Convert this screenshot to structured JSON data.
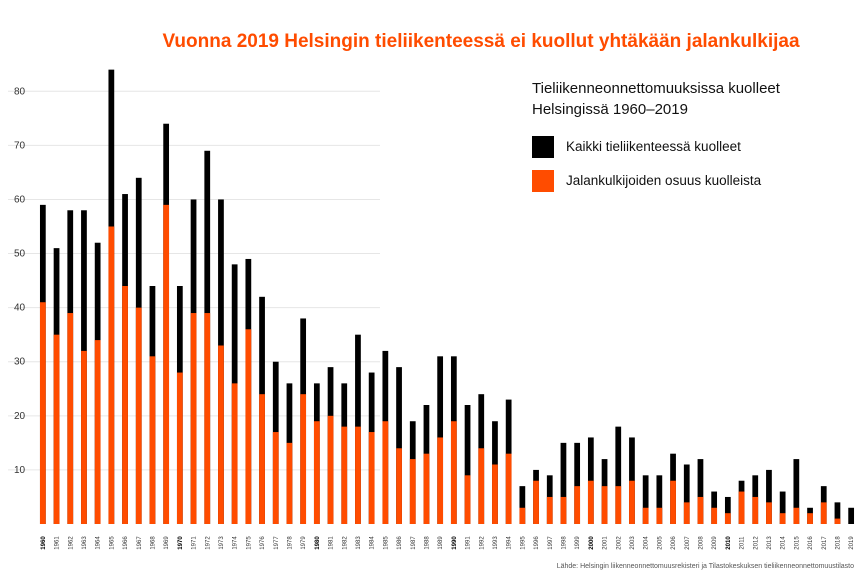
{
  "chart_data": {
    "type": "bar",
    "title": "Vuonna 2019 Helsingin tieliikenteessä ei kuollut yhtäkään jalankulkijaa",
    "legend_title_line1": "Tieliikenneonnettomuuksissa kuolleet",
    "legend_title_line2": "Helsingissä 1960–2019",
    "source": "Lähde: Helsingin liikenneonnettomuusrekisteri ja Tilastokeskuksen tieliikenneonnettomuustilasto",
    "ylim": [
      0,
      88
    ],
    "yticks": [
      10,
      20,
      30,
      40,
      50,
      60,
      70,
      80
    ],
    "grid": true,
    "legend_position": "top-right",
    "categories": [
      "1960",
      "1961",
      "1962",
      "1963",
      "1964",
      "1965",
      "1966",
      "1967",
      "1968",
      "1969",
      "1970",
      "1971",
      "1972",
      "1973",
      "1974",
      "1975",
      "1976",
      "1977",
      "1978",
      "1979",
      "1980",
      "1981",
      "1982",
      "1983",
      "1984",
      "1985",
      "1986",
      "1987",
      "1988",
      "1989",
      "1990",
      "1991",
      "1992",
      "1993",
      "1994",
      "1995",
      "1996",
      "1997",
      "1998",
      "1999",
      "2000",
      "2001",
      "2002",
      "2003",
      "2004",
      "2005",
      "2006",
      "2007",
      "2008",
      "2009",
      "2010",
      "2011",
      "2012",
      "2013",
      "2014",
      "2015",
      "2016",
      "2017",
      "2018",
      "2019"
    ],
    "major_ticks": [
      "1960",
      "1970",
      "1980",
      "1990",
      "2000",
      "2010"
    ],
    "series": [
      {
        "name": "Kaikki tieliikenteessä kuolleet",
        "color": "#000000",
        "values": [
          59,
          51,
          58,
          58,
          52,
          84,
          61,
          64,
          44,
          74,
          44,
          60,
          69,
          60,
          48,
          49,
          42,
          30,
          26,
          38,
          26,
          29,
          26,
          35,
          28,
          32,
          29,
          19,
          22,
          31,
          31,
          22,
          24,
          19,
          23,
          7,
          10,
          9,
          15,
          15,
          16,
          12,
          18,
          16,
          9,
          9,
          13,
          11,
          12,
          6,
          5,
          8,
          9,
          10,
          6,
          12,
          3,
          7,
          4,
          3
        ]
      },
      {
        "name": "Jalankulkijoiden osuus kuolleista",
        "color": "#ff4c00",
        "values": [
          41,
          35,
          39,
          32,
          34,
          55,
          44,
          40,
          31,
          59,
          28,
          39,
          39,
          33,
          26,
          36,
          24,
          17,
          15,
          24,
          19,
          20,
          18,
          18,
          17,
          19,
          14,
          12,
          13,
          16,
          19,
          9,
          14,
          11,
          13,
          3,
          8,
          5,
          5,
          7,
          8,
          7,
          7,
          8,
          3,
          3,
          8,
          4,
          5,
          3,
          2,
          6,
          5,
          4,
          2,
          3,
          2,
          4,
          1,
          0
        ]
      }
    ]
  }
}
